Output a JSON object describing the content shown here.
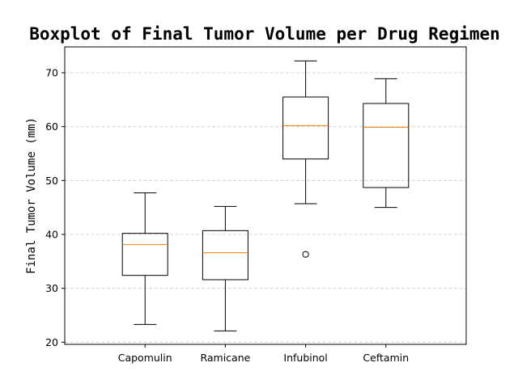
{
  "chart_data": {
    "type": "boxplot",
    "title": "Boxplot of Final Tumor Volume per Drug Regimen",
    "xlabel": "",
    "ylabel": "Final Tumor Volume (mm)",
    "categories": [
      "Capomulin",
      "Ramicane",
      "Infubinol",
      "Ceftamin"
    ],
    "boxes": [
      {
        "whisker_low": 23.3,
        "q1": 32.4,
        "median": 38.1,
        "q3": 40.2,
        "whisker_high": 47.7,
        "outliers": []
      },
      {
        "whisker_low": 22.1,
        "q1": 31.6,
        "median": 36.6,
        "q3": 40.7,
        "whisker_high": 45.2,
        "outliers": []
      },
      {
        "whisker_low": 45.7,
        "q1": 54.0,
        "median": 60.2,
        "q3": 65.5,
        "whisker_high": 72.2,
        "outliers": [
          36.3
        ]
      },
      {
        "whisker_low": 45.0,
        "q1": 48.7,
        "median": 59.9,
        "q3": 64.3,
        "whisker_high": 68.9,
        "outliers": []
      }
    ],
    "ylim": [
      19.6,
      74.8
    ],
    "yticks": [
      20,
      30,
      40,
      50,
      60,
      70
    ],
    "grid": "horizontal-dashed",
    "colors": {
      "box": "#000000",
      "median": "#ff7f0e",
      "grid": "#cccccc"
    }
  }
}
